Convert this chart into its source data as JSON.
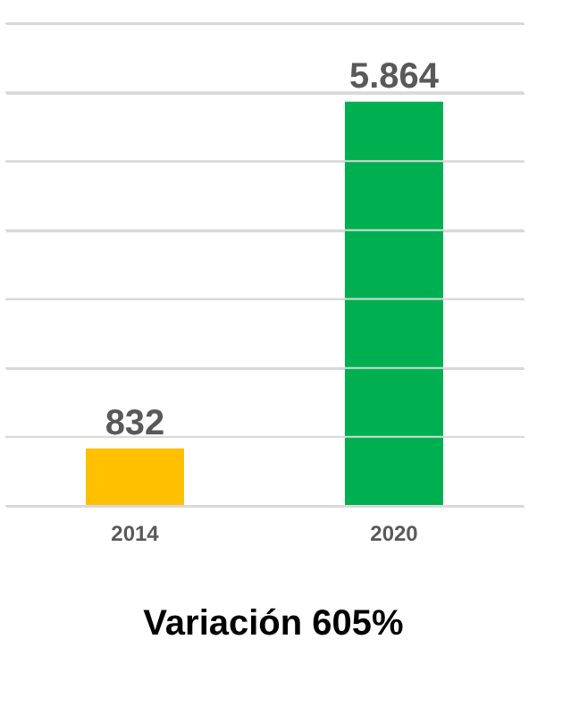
{
  "chart_data": {
    "type": "bar",
    "categories": [
      "2014",
      "2020"
    ],
    "values": [
      832,
      5864
    ],
    "colors": [
      "#ffc000",
      "#00b050"
    ],
    "value_labels": [
      "832",
      "5.864"
    ],
    "ylim": [
      0,
      7000
    ],
    "yticks": [
      {
        "value": 0,
        "label": null
      },
      {
        "value": 1000,
        "label": null
      },
      {
        "value": 2000,
        "label": null
      },
      {
        "value": 3000,
        "label": null
      },
      {
        "value": 4000,
        "label": null
      },
      {
        "value": 5000,
        "label": null
      },
      {
        "value": 6000,
        "label": null
      },
      {
        "value": 7000,
        "label": null
      }
    ],
    "tick_labels": "x",
    "grid": "y",
    "annotations": [
      "Variación 605%"
    ]
  }
}
